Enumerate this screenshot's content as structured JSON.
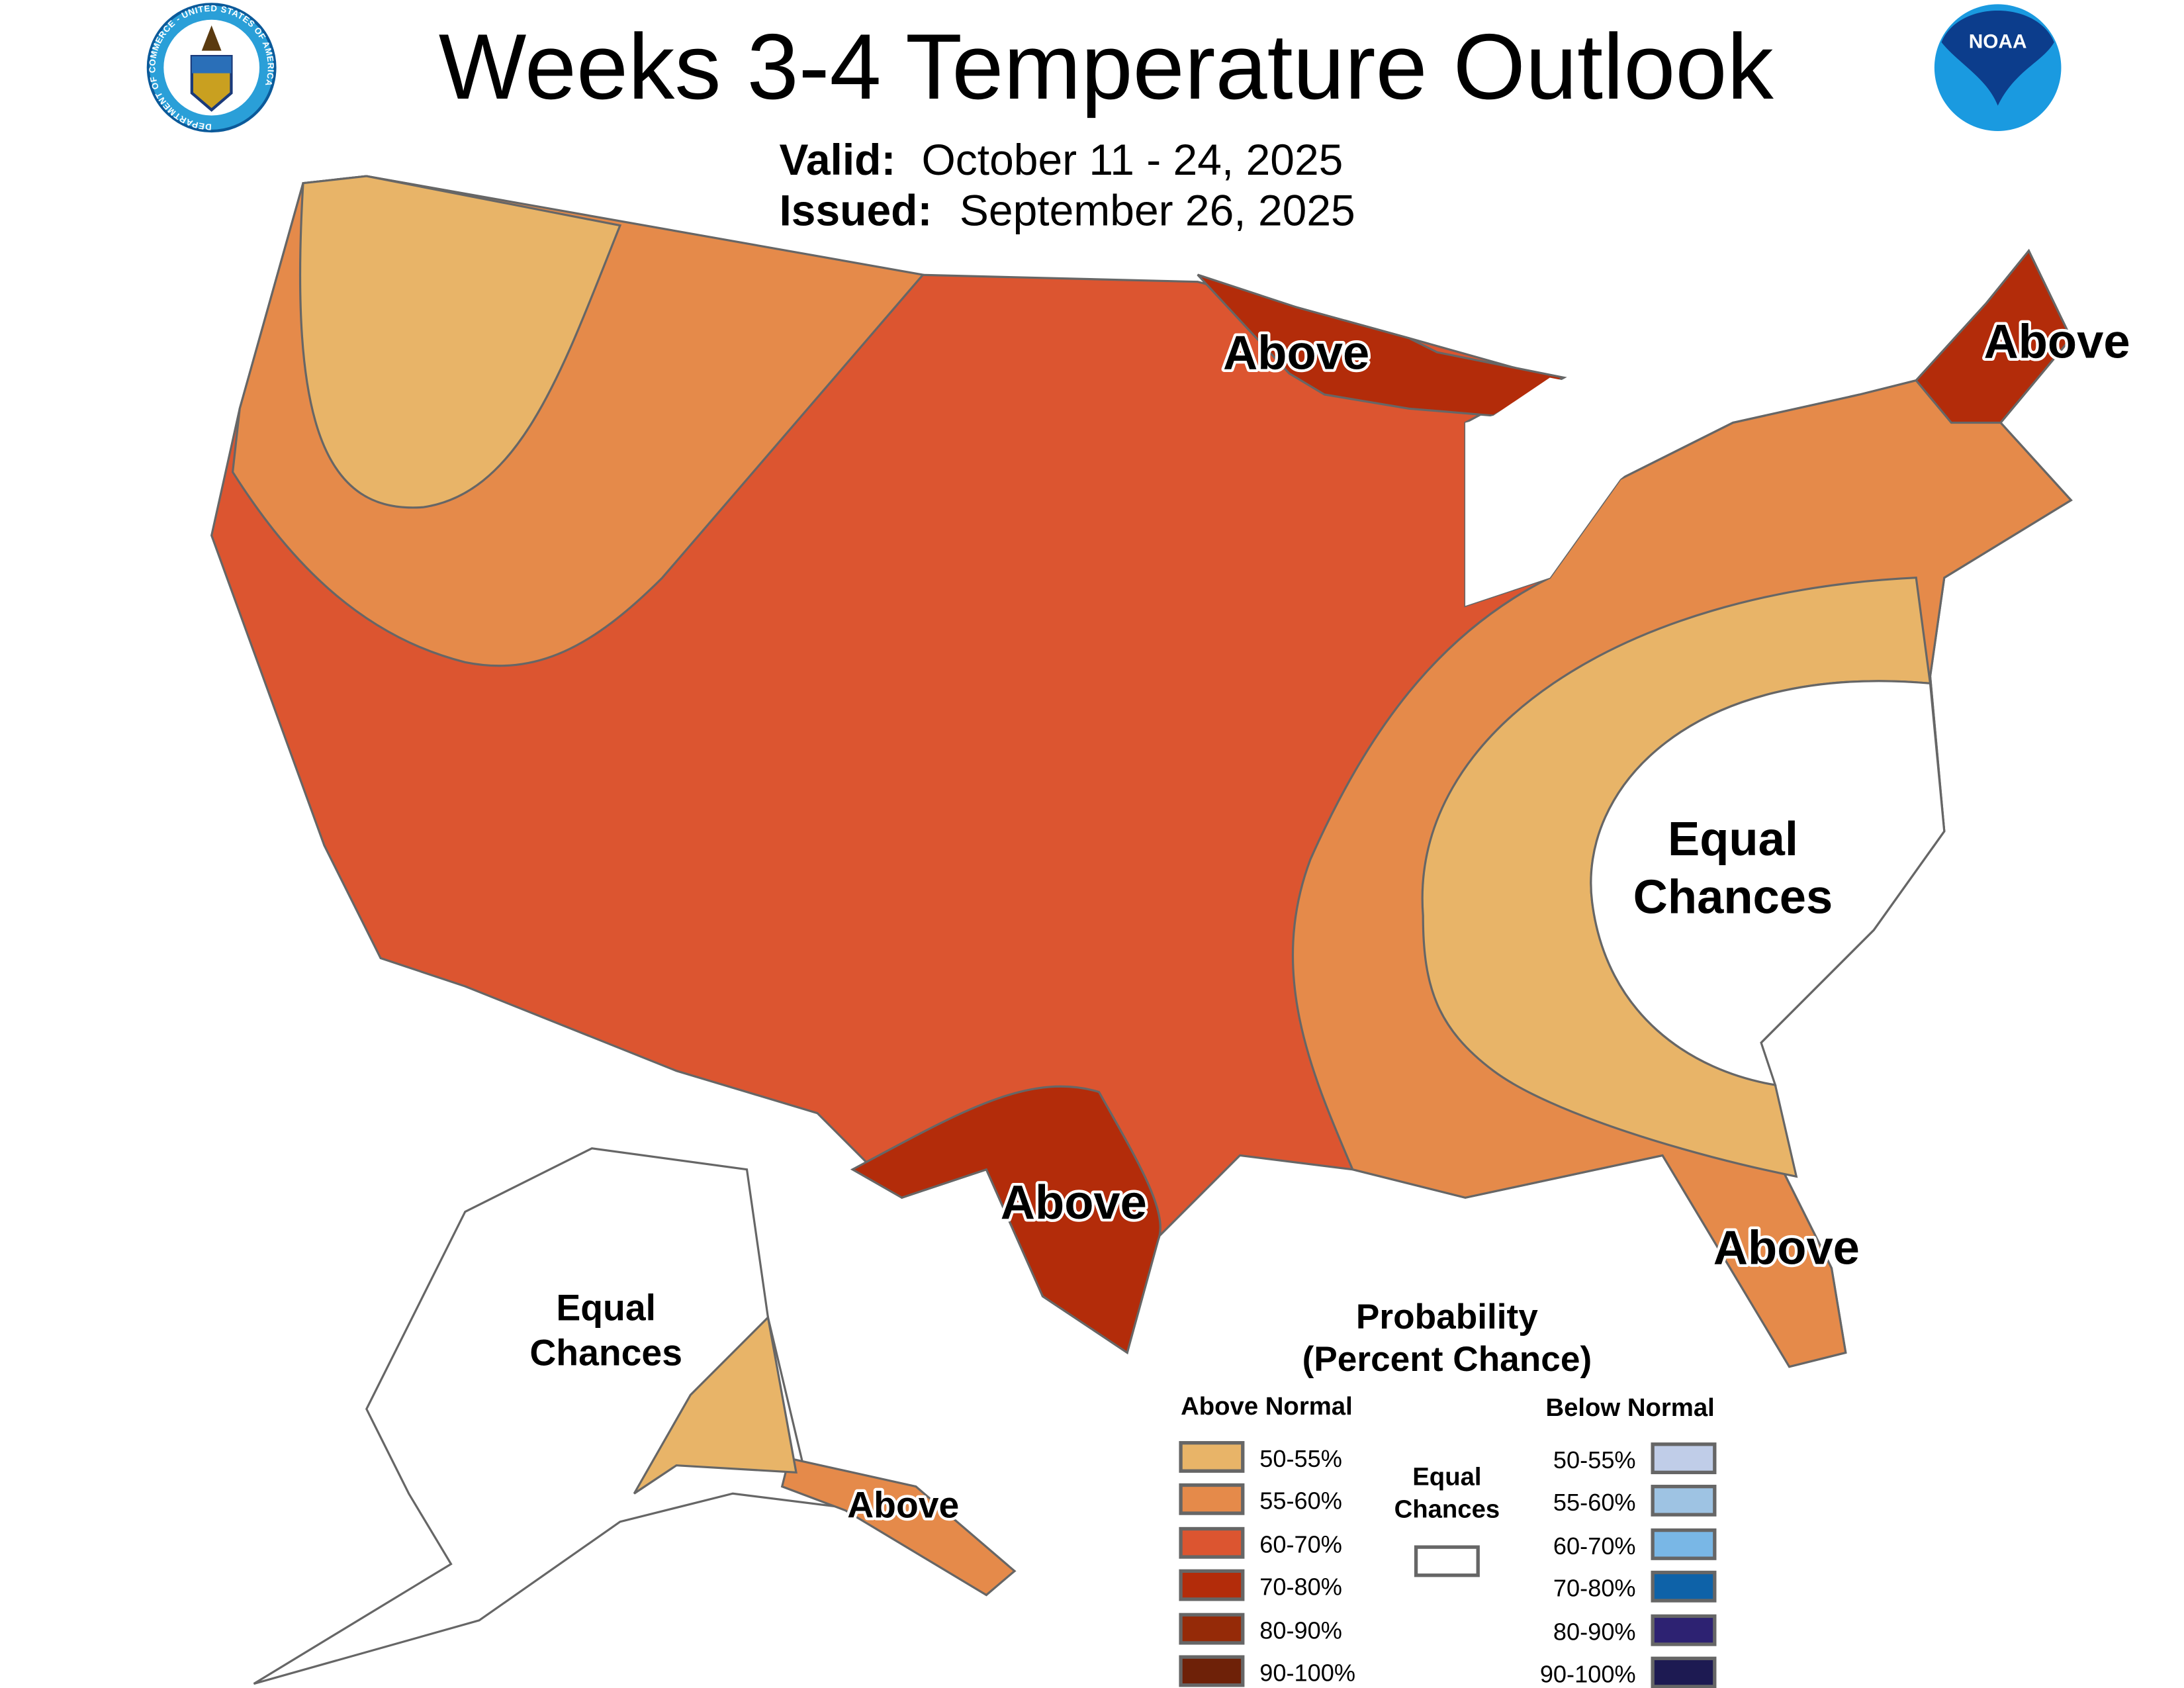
{
  "header": {
    "title": "Weeks 3-4 Temperature Outlook",
    "valid_label": "Valid:",
    "valid_value": "October 11 - 24, 2025",
    "issued_label": "Issued:",
    "issued_value": "September 26, 2025",
    "left_logo": "US Department of Commerce seal",
    "left_logo_text": "DEPARTMENT OF COMMERCE - UNITED STATES OF AMERICA",
    "right_logo": "NOAA logo",
    "right_logo_text": "NOAA"
  },
  "map": {
    "labels": {
      "above_great_lakes": "Above",
      "above_maine": "Above",
      "above_texas": "Above",
      "above_florida": "Above",
      "above_alaska": "Above",
      "equal_southeast_1": "Equal",
      "equal_southeast_2": "Chances",
      "equal_alaska_1": "Equal",
      "equal_alaska_2": "Chances"
    },
    "colors": {
      "equal": "#ffffff",
      "a50": "#e8b468",
      "a55": "#e58a4a",
      "a60": "#dc5530",
      "a70": "#b32c0a"
    }
  },
  "legend": {
    "title_1": "Probability",
    "title_2": "(Percent Chance)",
    "above_header": "Above Normal",
    "below_header": "Below Normal",
    "equal_1": "Equal",
    "equal_2": "Chances",
    "equal_color": "#ffffff",
    "above": [
      {
        "label": "50-55%",
        "color": "#e8b468"
      },
      {
        "label": "55-60%",
        "color": "#e58a4a"
      },
      {
        "label": "60-70%",
        "color": "#dc5530"
      },
      {
        "label": "70-80%",
        "color": "#b32c0a"
      },
      {
        "label": "80-90%",
        "color": "#952a08"
      },
      {
        "label": "90-100%",
        "color": "#6e2108"
      }
    ],
    "below": [
      {
        "label": "50-55%",
        "color": "#c0cde8"
      },
      {
        "label": "55-60%",
        "color": "#9ec3e3"
      },
      {
        "label": "60-70%",
        "color": "#79b7e6"
      },
      {
        "label": "70-80%",
        "color": "#0e62a8"
      },
      {
        "label": "80-90%",
        "color": "#2d2272"
      },
      {
        "label": "90-100%",
        "color": "#1d1a52"
      }
    ]
  }
}
